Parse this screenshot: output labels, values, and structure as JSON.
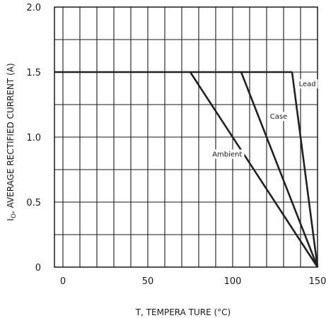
{
  "chart_data": {
    "type": "line",
    "xlabel": "T, TEMPERA   TURE   (°C)",
    "ylabel_main": "I",
    "ylabel_sub": "O",
    "ylabel_rest": ", AVERAGE   RECTIFIED   CURRENT   (A)",
    "xlim": [
      -5,
      150
    ],
    "ylim": [
      0,
      2.0
    ],
    "x_ticks": [
      0,
      50,
      100,
      150
    ],
    "y_ticks": [
      0,
      0.5,
      1.0,
      1.5,
      2.0
    ],
    "x_tick_labels": [
      "0",
      "50",
      "100",
      "150"
    ],
    "y_tick_labels": [
      "0",
      "0.5",
      "1.0",
      "1.5",
      "2.0"
    ],
    "grid": true,
    "grid_x_step": 10,
    "grid_y_step": 0.25,
    "colors": {
      "line": "#222222",
      "grid": "#1a1a1a",
      "background": "#ffffff"
    },
    "baseline": {
      "x": [
        -5,
        135
      ],
      "y": [
        1.5,
        1.5
      ]
    },
    "series": [
      {
        "name": "Lead",
        "x": [
          135,
          150
        ],
        "y": [
          1.5,
          0
        ]
      },
      {
        "name": "Case",
        "x": [
          105,
          150
        ],
        "y": [
          1.5,
          0
        ]
      },
      {
        "name": "Ambient",
        "x": [
          75,
          150
        ],
        "y": [
          1.5,
          0
        ]
      }
    ],
    "annotations": [
      {
        "text": "Lead",
        "x": 139,
        "y": 1.39
      },
      {
        "text": "Case",
        "x": 122,
        "y": 1.14
      },
      {
        "text": "Ambient",
        "x": 88,
        "y": 0.85
      }
    ]
  }
}
